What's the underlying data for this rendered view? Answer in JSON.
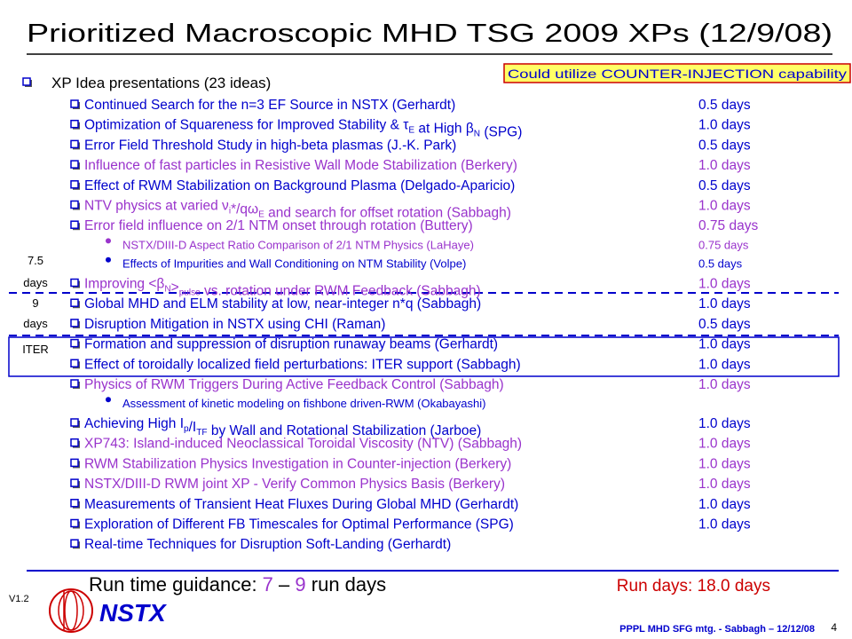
{
  "title": "Prioritized Macroscopic MHD TSG 2009 XPs (12/9/08)",
  "callout": "Could utilize COUNTER-INJECTION capability",
  "header": "XP Idea presentations (23 ideas)",
  "items": [
    {
      "text": [
        "Continued Search for the n=3 EF Source in NSTX (Gerhardt)"
      ],
      "days": "0.5 days",
      "color": "#0000cc"
    },
    {
      "text": [
        "Optimization of Squareness for Improved Stability & τ",
        {
          "sub": "E"
        },
        " at High β",
        {
          "sub": "N"
        },
        " (SPG)"
      ],
      "days": "1.0 days",
      "color": "#0000cc"
    },
    {
      "text": [
        "Error Field Threshold Study in high-beta plasmas (J.-K. Park)"
      ],
      "days": "0.5 days",
      "color": "#0000cc"
    },
    {
      "text": [
        "Influence of fast particles in Resistive Wall Mode Stabilization (Berkery)"
      ],
      "days": "1.0 days",
      "color": "#9933cc"
    },
    {
      "text": [
        "Effect of RWM Stabilization on Background Plasma (Delgado-Aparicio)"
      ],
      "days": "0.5 days",
      "color": "#0000cc"
    },
    {
      "text": [
        "NTV physics at varied ν",
        {
          "sub": "i"
        },
        "*/qω",
        {
          "sub": "E"
        },
        " and search for offset rotation (Sabbagh)"
      ],
      "days": "1.0 days",
      "color": "#9933cc"
    },
    {
      "text": [
        "Error field influence on 2/1 NTM onset through rotation (Buttery)"
      ],
      "days": "0.75 days",
      "color": "#9933cc",
      "sub": [
        {
          "text": [
            "NSTX/DIII-D Aspect Ratio Comparison of 2/1 NTM Physics (LaHaye)"
          ],
          "days": "0.75 days",
          "color": "#9933cc"
        },
        {
          "text": [
            "Effects of Impurities and Wall Conditioning on NTM Stability (Volpe)"
          ],
          "days": "0.5 days",
          "color": "#0000cc"
        }
      ]
    },
    {
      "text": [
        "Improving <β",
        {
          "sub": "N"
        },
        ">",
        {
          "sub": "pulse"
        },
        " vs. rotation under RWM Feedback (Sabbagh)"
      ],
      "days": "1.0 days",
      "color": "#9933cc"
    },
    {
      "text": [
        "Global MHD and ELM stability at low, near-integer n*q (Sabbagh)"
      ],
      "days": "1.0 days",
      "color": "#0000cc"
    },
    {
      "text": [
        "Disruption Mitigation in NSTX using CHI (Raman)"
      ],
      "days": "0.5 days",
      "color": "#0000cc"
    },
    {
      "text": [
        "Formation and suppression of disruption runaway beams (Gerhardt)"
      ],
      "days": "1.0 days",
      "color": "#0000cc"
    },
    {
      "text": [
        "Effect of toroidally localized field perturbations: ITER support (Sabbagh)"
      ],
      "days": "1.0 days",
      "color": "#0000cc"
    },
    {
      "text": [
        "Physics of RWM Triggers During Active Feedback Control (Sabbagh)"
      ],
      "days": "1.0 days",
      "color": "#9933cc",
      "sub": [
        {
          "text": [
            "Assessment of kinetic modeling on fishbone driven-RWM (Okabayashi)"
          ],
          "color": "#0000cc"
        }
      ]
    },
    {
      "text": [
        "Achieving High I",
        {
          "sub": "p"
        },
        "/I",
        {
          "sub": "TF"
        },
        " by Wall and Rotational Stabilization (Jarboe)"
      ],
      "days": "1.0 days",
      "color": "#0000cc"
    },
    {
      "text": [
        "XP743: Island-induced Neoclassical Toroidal Viscosity (NTV) (Sabbagh)"
      ],
      "days": "1.0 days",
      "color": "#9933cc"
    },
    {
      "text": [
        "RWM Stabilization Physics Investigation in Counter-injection (Berkery)"
      ],
      "days": "1.0 days",
      "color": "#9933cc"
    },
    {
      "text": [
        "NSTX/DIII-D RWM joint XP - Verify Common Physics Basis (Berkery)"
      ],
      "days": "1.0 days",
      "color": "#9933cc"
    },
    {
      "text": [
        "Measurements of Transient Heat Fluxes During Global MHD (Gerhardt)"
      ],
      "days": "1.0 days",
      "color": "#0000cc"
    },
    {
      "text": [
        "Exploration of Different FB Timescales for Optimal Performance (SPG)"
      ],
      "days": "1.0 days",
      "color": "#0000cc"
    },
    {
      "text": [
        "Real-time Techniques for Disruption Soft-Landing (Gerhardt)"
      ],
      "color": "#0000cc"
    }
  ],
  "side_labels": {
    "first_days": [
      "7.5",
      "days"
    ],
    "second_days": [
      "9",
      "days"
    ],
    "iter": "ITER"
  },
  "guidance": [
    {
      "text": "Run time guidance: ",
      "color": "#000000"
    },
    {
      "text": "7",
      "color": "#9933cc"
    },
    {
      "text": " – ",
      "color": "#000000"
    },
    {
      "text": "9",
      "color": "#9933cc"
    },
    {
      "text": " run days",
      "color": "#000000"
    }
  ],
  "run_days": "Run days: 18.0 days",
  "version": "V1.2",
  "logo": "NSTX",
  "footer": "PPPL MHD SFG mtg. - Sabbagh – 12/12/08",
  "page_number": "4"
}
